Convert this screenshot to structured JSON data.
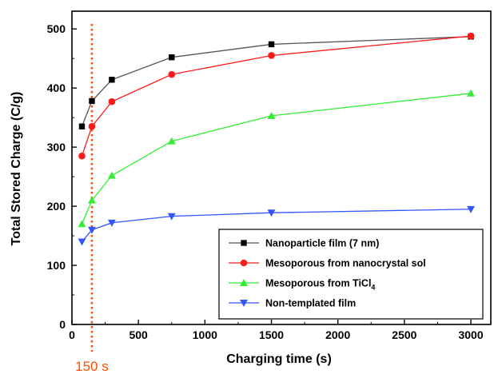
{
  "chart_data": {
    "type": "line",
    "xlabel": "Charging time (s)",
    "ylabel": "Total Stored Charge (C/g)",
    "xlim": [
      0,
      3150
    ],
    "ylim": [
      0,
      530
    ],
    "xticks": [
      0,
      500,
      1000,
      1500,
      2000,
      2500,
      3000
    ],
    "yticks": [
      0,
      100,
      200,
      300,
      400,
      500
    ],
    "grid": false,
    "legend_position": "bottom-right",
    "series": [
      {
        "name": "Nanoparticle film (7 nm)",
        "color": "#000000",
        "line_color": "#555555",
        "marker": "square",
        "x": [
          75,
          150,
          300,
          750,
          1500,
          3000
        ],
        "y": [
          335,
          378,
          414,
          452,
          474,
          487
        ]
      },
      {
        "name": "Mesoporous from nanocrystal sol",
        "color": "#ff1a1a",
        "line_color": "#ff1a1a",
        "marker": "circle",
        "x": [
          75,
          150,
          300,
          750,
          1500,
          3000
        ],
        "y": [
          285,
          335,
          377,
          423,
          455,
          488
        ]
      },
      {
        "name": "Mesoporous from TiCl",
        "name_subscript": "4",
        "color": "#33ee33",
        "line_color": "#33ee33",
        "marker": "triangle-up",
        "x": [
          75,
          150,
          300,
          750,
          1500,
          3000
        ],
        "y": [
          170,
          210,
          252,
          310,
          353,
          391
        ]
      },
      {
        "name": "Non-templated film",
        "color": "#3355ff",
        "line_color": "#3355ff",
        "marker": "triangle-down",
        "x": [
          75,
          150,
          300,
          750,
          1500,
          3000
        ],
        "y": [
          140,
          160,
          172,
          183,
          189,
          195
        ]
      }
    ],
    "annotations": [
      {
        "type": "vline",
        "x": 150,
        "color": "#ff4c00",
        "style": "dotted",
        "label": "150 s"
      }
    ]
  }
}
